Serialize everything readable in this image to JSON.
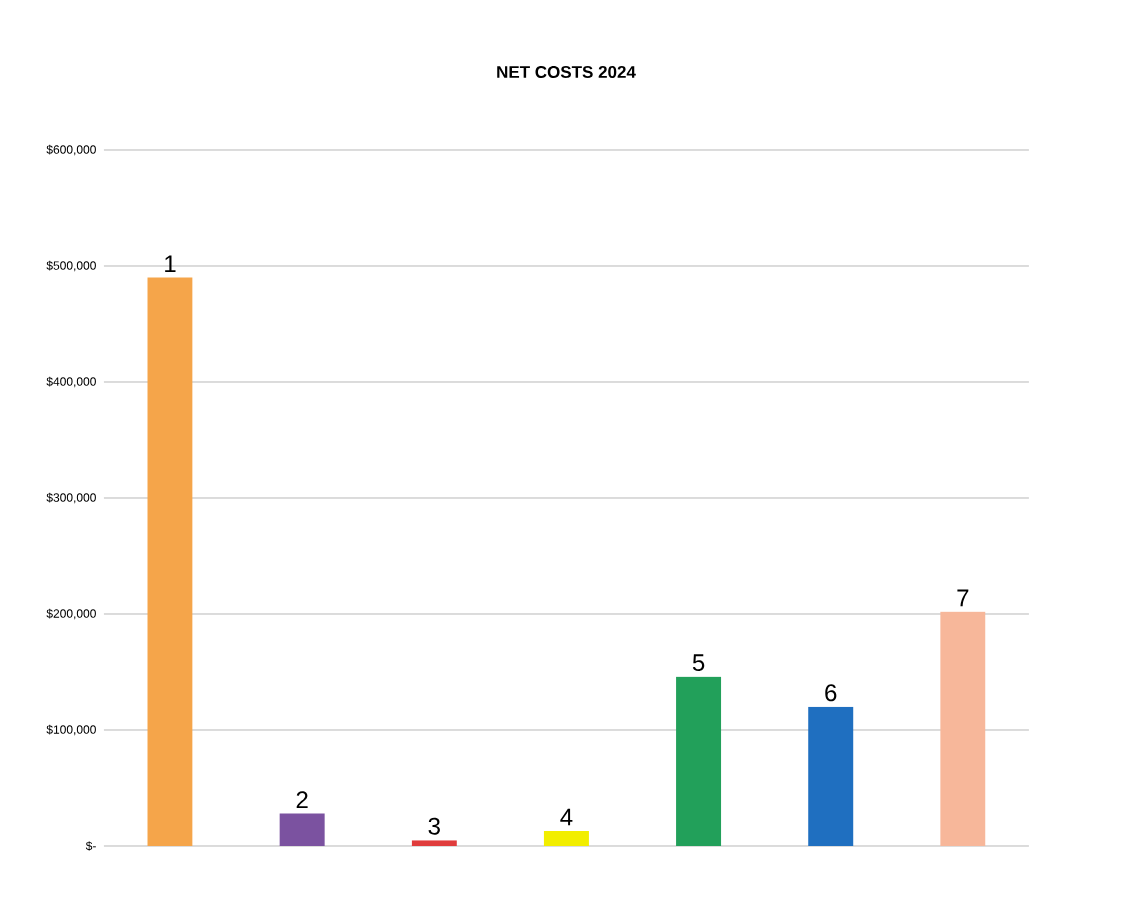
{
  "chart_data": {
    "type": "bar",
    "title": "NET COSTS 2024",
    "categories": [
      "1",
      "2",
      "3",
      "4",
      "5",
      "6",
      "7"
    ],
    "values": [
      490000,
      28000,
      5000,
      13000,
      146000,
      120000,
      202000
    ],
    "colors": [
      "#f5a54a",
      "#7b52a0",
      "#e03c3c",
      "#f2ee00",
      "#22a05a",
      "#1f6fc0",
      "#f7b79a"
    ],
    "ylim": [
      0,
      600000
    ],
    "yticks": [
      {
        "value": 0,
        "label": "$-"
      },
      {
        "value": 100000,
        "label": "$100,000"
      },
      {
        "value": 200000,
        "label": "$200,000"
      },
      {
        "value": 300000,
        "label": "$300,000"
      },
      {
        "value": 400000,
        "label": "$400,000"
      },
      {
        "value": 500000,
        "label": "$500,000"
      },
      {
        "value": 600000,
        "label": "$600,000"
      }
    ],
    "grid": "y"
  }
}
